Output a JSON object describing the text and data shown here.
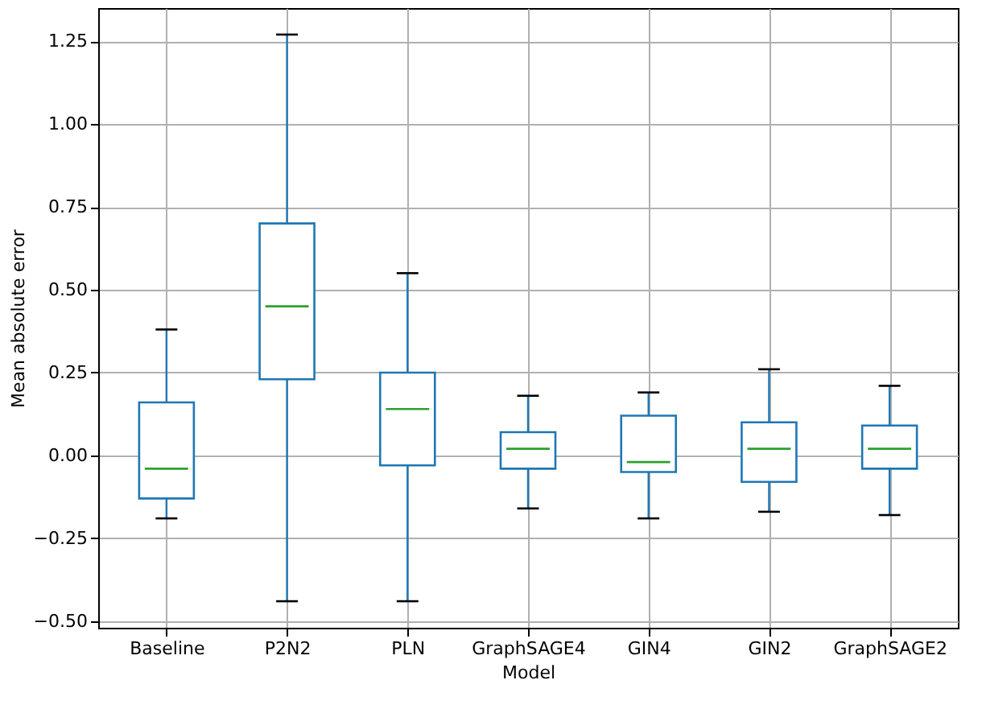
{
  "chart_data": {
    "type": "box",
    "xlabel": "Model",
    "ylabel": "Mean absolute error",
    "categories": [
      "Baseline",
      "P2N2",
      "PLN",
      "GraphSAGE4",
      "GIN4",
      "GIN2",
      "GraphSAGE2"
    ],
    "boxes": [
      {
        "low": -0.19,
        "q1": -0.13,
        "median": -0.04,
        "q3": 0.16,
        "high": 0.38
      },
      {
        "low": -0.44,
        "q1": 0.23,
        "median": 0.45,
        "q3": 0.7,
        "high": 1.27
      },
      {
        "low": -0.44,
        "q1": -0.03,
        "median": 0.14,
        "q3": 0.25,
        "high": 0.55
      },
      {
        "low": -0.16,
        "q1": -0.04,
        "median": 0.02,
        "q3": 0.07,
        "high": 0.18
      },
      {
        "low": -0.19,
        "q1": -0.05,
        "median": -0.02,
        "q3": 0.12,
        "high": 0.19
      },
      {
        "low": -0.17,
        "q1": -0.08,
        "median": 0.02,
        "q3": 0.1,
        "high": 0.26
      },
      {
        "low": -0.18,
        "q1": -0.04,
        "median": 0.02,
        "q3": 0.09,
        "high": 0.21
      }
    ],
    "color": "#1f77b4",
    "ylim": [
      -0.52,
      1.35
    ],
    "yticks": [
      {
        "value": -0.5,
        "label": "−0.50"
      },
      {
        "value": -0.25,
        "label": "−0.25"
      },
      {
        "value": 0,
        "label": "0.00"
      },
      0.25,
      {
        "value": 0.5,
        "label": "0.50"
      },
      0.75,
      {
        "value": 1,
        "label": "1.00"
      },
      1.25
    ],
    "grid": true
  }
}
